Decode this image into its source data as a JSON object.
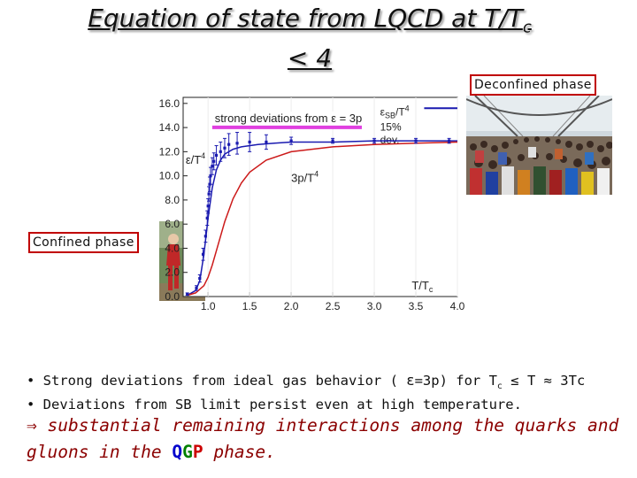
{
  "title": {
    "line1": "Equation of state from LQCD at T/T",
    "sub": "c",
    "line2": "< 4"
  },
  "labels": {
    "deconfined": "Deconfined phase",
    "confined": "Confined phase"
  },
  "bullets": [
    {
      "prefix": "• Strong deviations from ideal gas behavior ( ε=3p) for T",
      "sub": "c",
      "suffix": " ≤ T ≈ 3Tc"
    },
    {
      "text": "• Deviations from SB limit persist even at high temperature."
    }
  ],
  "conclusion": {
    "arrow": "⇒",
    "text1": " substantial remaining interactions among the quarks and gluons in the ",
    "q": "Q",
    "g": "G",
    "p": "P",
    "text2": " phase."
  },
  "colors": {
    "epsilon_series": "#1a1ab0",
    "three_p_series": "#cc1a1a",
    "highlight": "#e040e0",
    "label_border": "#c00000"
  },
  "chart_data": {
    "type": "line",
    "xlim": [
      0.7,
      4.0
    ],
    "ylim": [
      0,
      16.5
    ],
    "xticks": [
      "1.0",
      "1.5",
      "2.0",
      "2.5",
      "3.0",
      "3.5",
      "4.0"
    ],
    "yticks": [
      "0.0",
      "2.0",
      "4.0",
      "6.0",
      "8.0",
      "10.0",
      "12.0",
      "14.0",
      "16.0"
    ],
    "xlabel": "T/T",
    "xlabel_sub": "c",
    "annotations": {
      "deviation_text": "strong deviations from ε = 3p",
      "sb_label": "ε",
      "sb_sub": "SB",
      "sb_suffix": "/T",
      "sb_sup": "4",
      "dev_line1": "15%",
      "dev_line2": "dev."
    },
    "series": [
      {
        "name": "ε/T",
        "name_sup": "4",
        "kind": "points",
        "x": [
          0.75,
          0.86,
          0.9,
          0.94,
          0.97,
          0.99,
          1.0,
          1.01,
          1.02,
          1.03,
          1.05,
          1.07,
          1.1,
          1.15,
          1.2,
          1.25,
          1.35,
          1.5,
          1.7,
          2.0,
          2.5,
          3.0,
          3.5,
          3.9
        ],
        "y": [
          0.2,
          0.7,
          1.5,
          3.5,
          5.0,
          6.5,
          7.5,
          8.5,
          9.3,
          10.0,
          10.8,
          11.2,
          11.7,
          12.0,
          12.3,
          12.6,
          12.7,
          12.8,
          12.8,
          12.9,
          12.9,
          12.9,
          12.9,
          12.9
        ],
        "err": [
          0.1,
          0.2,
          0.3,
          0.5,
          0.5,
          0.6,
          0.6,
          0.6,
          0.6,
          0.7,
          0.7,
          0.7,
          0.8,
          0.8,
          0.8,
          0.9,
          0.9,
          0.8,
          0.6,
          0.3,
          0.2,
          0.2,
          0.2,
          0.2
        ]
      },
      {
        "name": "ε/T",
        "name_sup": "4",
        "kind": "fit",
        "x": [
          0.75,
          0.85,
          0.9,
          0.95,
          1.0,
          1.05,
          1.1,
          1.15,
          1.2,
          1.3,
          1.4,
          1.6,
          1.8,
          2.0,
          2.5,
          3.0,
          3.5,
          4.0
        ],
        "y": [
          0.1,
          0.5,
          1.3,
          3.5,
          6.5,
          9.0,
          10.5,
          11.3,
          11.8,
          12.2,
          12.4,
          12.6,
          12.7,
          12.8,
          12.8,
          12.9,
          12.9,
          12.9
        ]
      },
      {
        "name": "3p/T",
        "name_sup": "4",
        "kind": "line",
        "x": [
          0.75,
          0.85,
          0.95,
          1.0,
          1.05,
          1.1,
          1.15,
          1.2,
          1.3,
          1.4,
          1.5,
          1.7,
          2.0,
          2.5,
          3.0,
          3.5,
          4.0
        ],
        "y": [
          0.1,
          0.3,
          0.9,
          1.6,
          2.6,
          3.8,
          5.0,
          6.2,
          8.1,
          9.4,
          10.3,
          11.3,
          12.0,
          12.4,
          12.6,
          12.7,
          12.8
        ]
      },
      {
        "name": "ε_SB/T^4",
        "kind": "reference",
        "y": 15.6
      }
    ]
  }
}
